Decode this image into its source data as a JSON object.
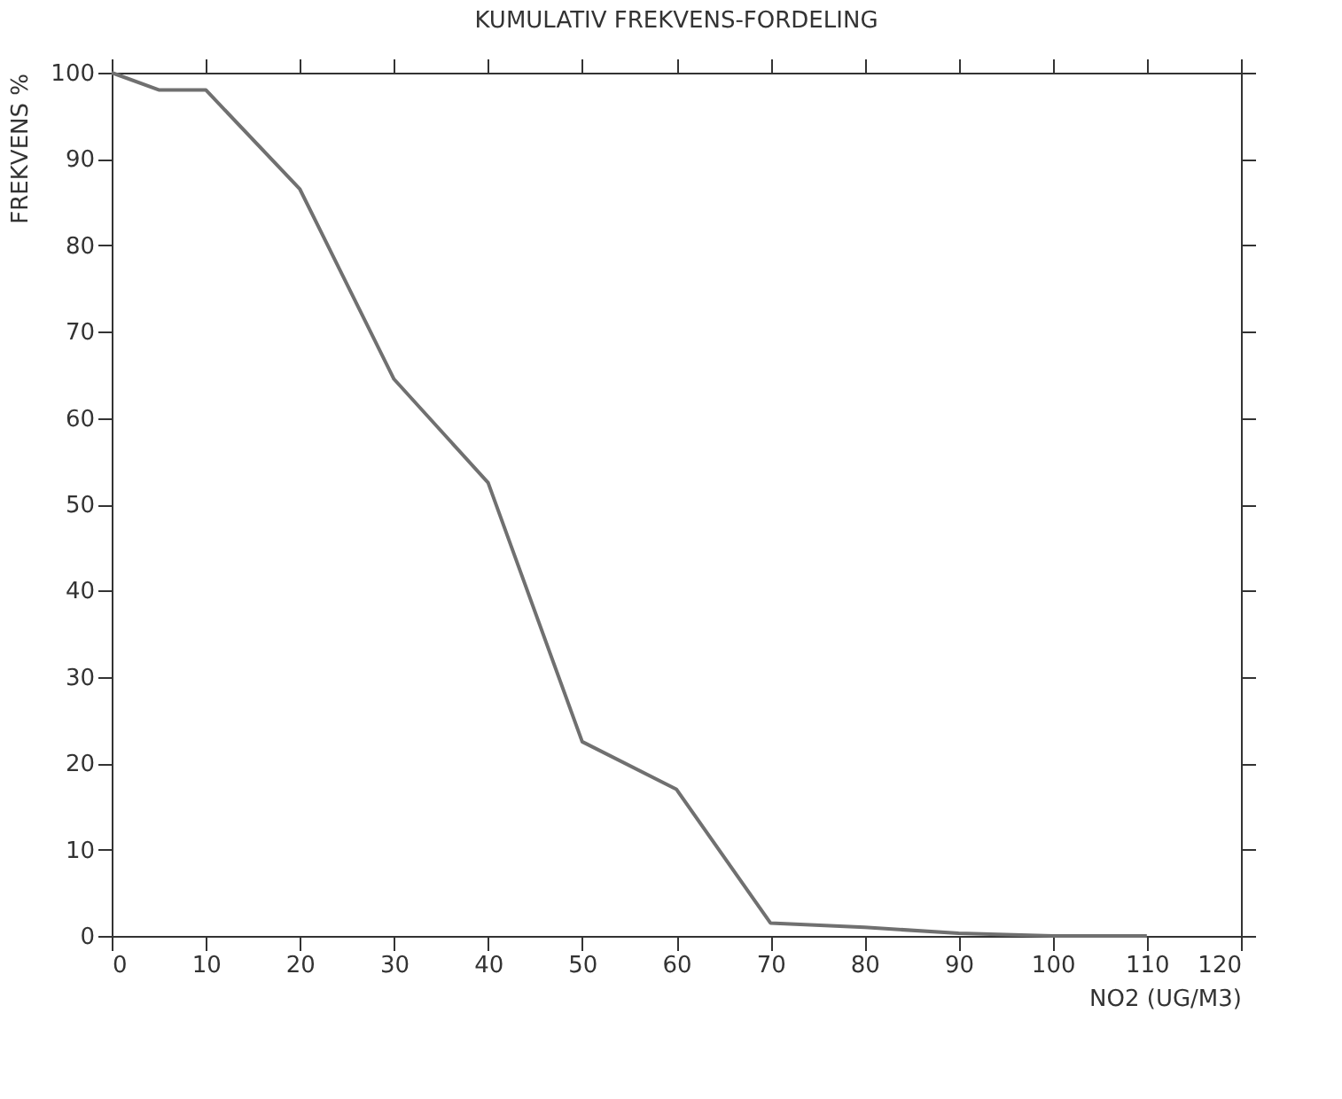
{
  "chart_data": {
    "type": "line",
    "title": "KUMULATIV FREKVENS-FORDELING",
    "xlabel": "NO2    (UG/M3)",
    "ylabel": "FREKVENS %",
    "x": [
      0,
      5,
      10,
      20,
      30,
      40,
      50,
      60,
      70,
      80,
      90,
      100,
      110
    ],
    "series": [
      {
        "color": "#707070",
        "values": [
          100,
          98,
          98,
          86.5,
          64.5,
          52.5,
          22.5,
          17,
          1.5,
          1,
          0.3,
          0,
          0
        ]
      }
    ],
    "xlim": [
      0,
      120
    ],
    "xticks": [
      0,
      10,
      20,
      30,
      40,
      50,
      60,
      70,
      80,
      90,
      100,
      110,
      120
    ],
    "ylim": [
      0,
      100
    ],
    "yticks": [
      0,
      10,
      20,
      30,
      40,
      50,
      60,
      70,
      80,
      90,
      100
    ],
    "grid": false,
    "marker": "none",
    "line_style": "solid"
  }
}
